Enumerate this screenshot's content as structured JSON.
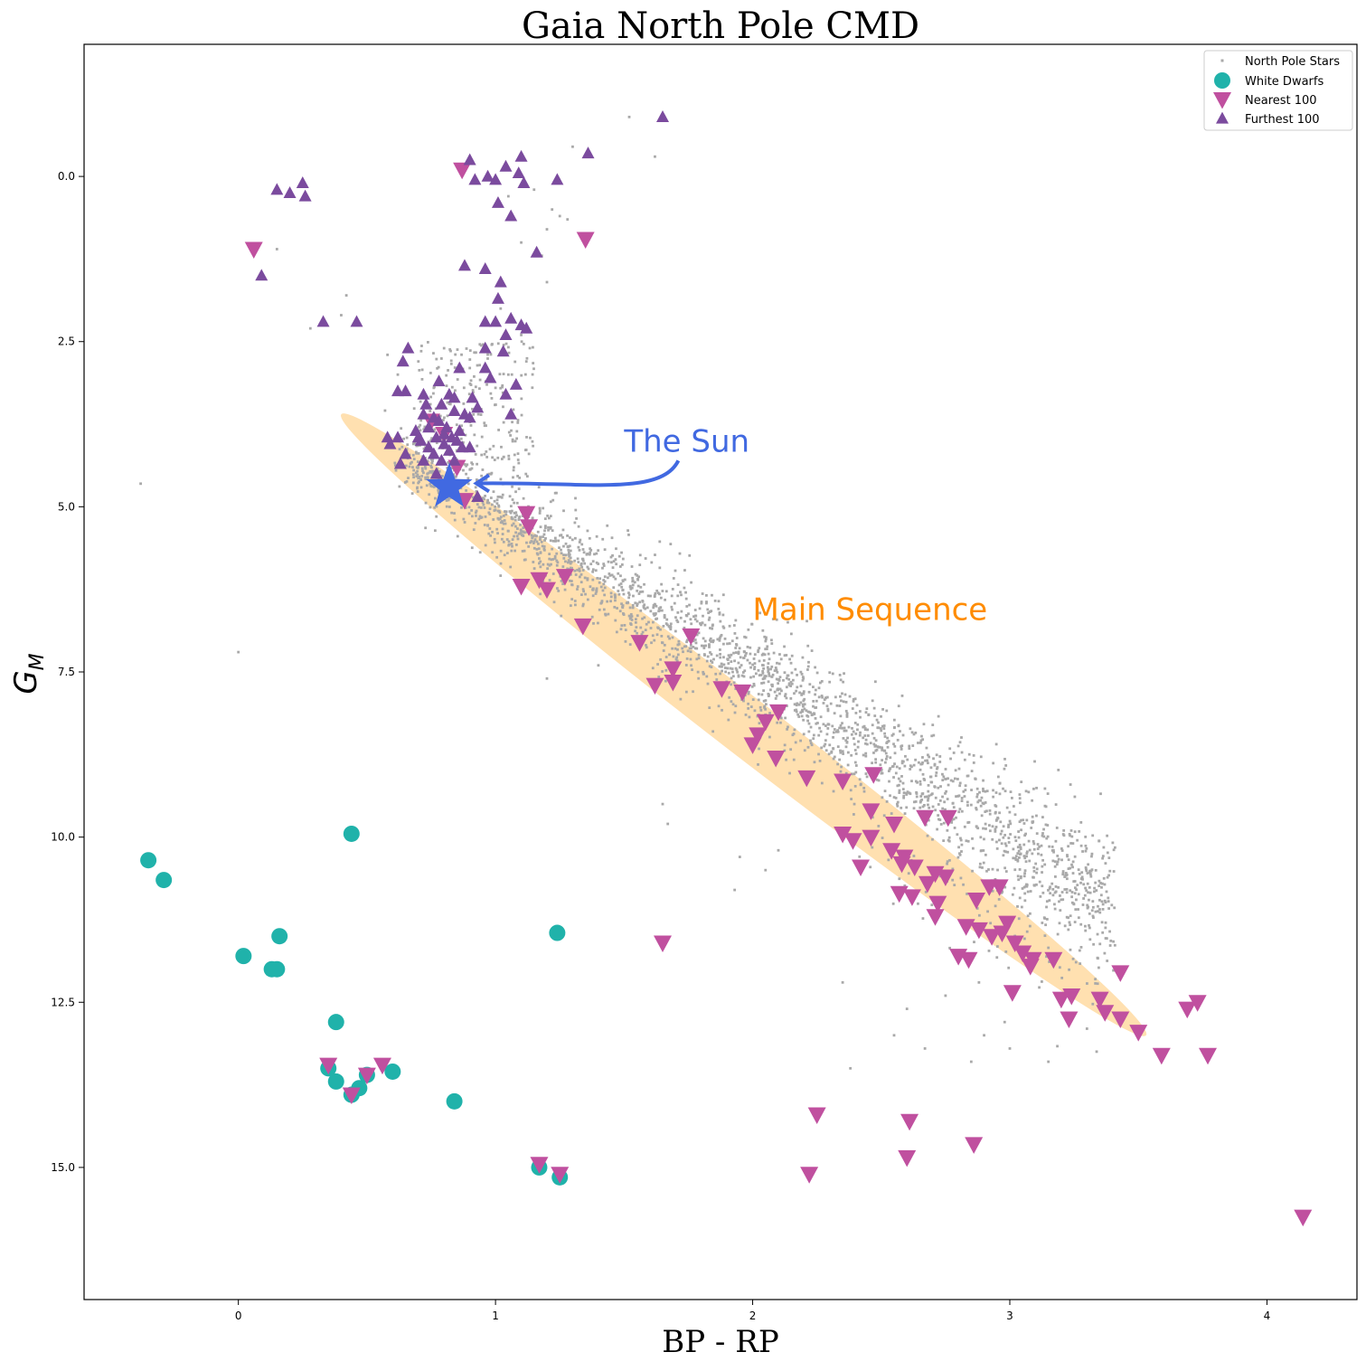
{
  "chart_data": {
    "type": "scatter",
    "title": "Gaia North Pole CMD",
    "xlabel": "BP - RP",
    "ylabel": "G_M",
    "xlim": [
      -0.6,
      4.35
    ],
    "ylim": [
      17.0,
      -2.0
    ],
    "y_inverted": true,
    "grid": false,
    "legend_placement": "top-right",
    "x_ticks": [
      0,
      1,
      2,
      3,
      4
    ],
    "y_ticks": [
      0.0,
      2.5,
      5.0,
      7.5,
      10.0,
      12.5,
      15.0
    ],
    "x_tick_labels": [
      "0",
      "1",
      "2",
      "3",
      "4"
    ],
    "y_tick_labels": [
      "0.0",
      "2.5",
      "5.0",
      "7.5",
      "10.0",
      "12.5",
      "15.0"
    ],
    "series": [
      {
        "name": "North Pole Stars",
        "marker": "small-square",
        "color": "#a9a9a9",
        "points": [
          [
            1.52,
            -0.9
          ],
          [
            1.62,
            -0.3
          ],
          [
            1.3,
            -0.45
          ],
          [
            1.22,
            0.5
          ],
          [
            1.25,
            0.6
          ],
          [
            1.28,
            0.65
          ],
          [
            1.15,
            0.2
          ],
          [
            1.2,
            0.8
          ],
          [
            1.18,
            1.2
          ],
          [
            1.2,
            1.6
          ],
          [
            1.05,
            0.3
          ],
          [
            1.1,
            1.0
          ],
          [
            0.15,
            1.1
          ],
          [
            0.4,
            2.1
          ],
          [
            0.42,
            1.8
          ],
          [
            0.28,
            2.3
          ],
          [
            0.62,
            3.0
          ],
          [
            0.58,
            2.7
          ],
          [
            0.7,
            2.8
          ],
          [
            0.8,
            2.6
          ],
          [
            0.76,
            3.2
          ],
          [
            0.85,
            3.4
          ],
          [
            0.9,
            2.9
          ],
          [
            1.1,
            2.4
          ],
          [
            1.12,
            2.8
          ],
          [
            1.0,
            3.2
          ],
          [
            1.05,
            3.0
          ],
          [
            1.02,
            2.0
          ],
          [
            -0.38,
            4.65
          ],
          [
            0.0,
            7.2
          ],
          [
            1.34,
            6.5
          ],
          [
            1.2,
            7.6
          ],
          [
            1.4,
            7.4
          ],
          [
            1.65,
            9.5
          ],
          [
            1.67,
            9.8
          ],
          [
            1.95,
            10.3
          ],
          [
            2.05,
            10.5
          ],
          [
            2.1,
            10.2
          ],
          [
            1.93,
            10.8
          ],
          [
            2.35,
            12.2
          ],
          [
            2.38,
            13.5
          ],
          [
            2.55,
            13.0
          ],
          [
            2.6,
            12.6
          ],
          [
            2.67,
            13.2
          ],
          [
            2.85,
            13.4
          ],
          [
            2.9,
            13.0
          ],
          [
            3.0,
            13.2
          ],
          [
            3.15,
            13.4
          ],
          [
            3.3,
            12.9
          ],
          [
            3.17,
            10.2
          ],
          [
            2.98,
            12.8
          ],
          [
            2.75,
            12.4
          ],
          [
            2.88,
            12.2
          ],
          [
            2.08,
            6.7
          ]
        ],
        "band": {
          "x_range": [
            0.62,
            3.4
          ],
          "line_a": 4.65,
          "line_b": 2.42,
          "scatter_sigma": 0.28,
          "n_points": 2400,
          "giant_branch_x_range": [
            0.7,
            1.15
          ],
          "giant_branch_y_range": [
            2.5,
            4.6
          ],
          "giant_branch_n": 220
        }
      },
      {
        "name": "White Dwarfs",
        "marker": "circle",
        "color": "#20b2aa",
        "points": [
          [
            -0.35,
            10.35
          ],
          [
            -0.29,
            10.65
          ],
          [
            0.44,
            9.95
          ],
          [
            0.02,
            11.8
          ],
          [
            0.16,
            11.5
          ],
          [
            0.13,
            12.0
          ],
          [
            0.15,
            12.0
          ],
          [
            0.38,
            12.8
          ],
          [
            0.35,
            13.5
          ],
          [
            0.38,
            13.7
          ],
          [
            0.47,
            13.8
          ],
          [
            0.44,
            13.9
          ],
          [
            0.5,
            13.6
          ],
          [
            0.6,
            13.55
          ],
          [
            0.84,
            14.0
          ],
          [
            1.24,
            11.45
          ],
          [
            1.17,
            15.0
          ],
          [
            1.25,
            15.15
          ]
        ]
      },
      {
        "name": "Nearest 100",
        "marker": "triangle-down",
        "color": "#c0509f",
        "points": [
          [
            0.87,
            -0.1
          ],
          [
            1.35,
            0.95
          ],
          [
            0.06,
            1.1
          ],
          [
            0.75,
            3.7
          ],
          [
            0.8,
            3.9
          ],
          [
            0.85,
            4.4
          ],
          [
            0.88,
            4.9
          ],
          [
            1.12,
            5.1
          ],
          [
            1.13,
            5.3
          ],
          [
            1.1,
            6.2
          ],
          [
            1.17,
            6.1
          ],
          [
            1.2,
            6.25
          ],
          [
            1.27,
            6.05
          ],
          [
            1.34,
            6.8
          ],
          [
            1.56,
            7.05
          ],
          [
            1.76,
            6.95
          ],
          [
            1.69,
            7.45
          ],
          [
            1.62,
            7.7
          ],
          [
            1.69,
            7.65
          ],
          [
            1.88,
            7.75
          ],
          [
            1.96,
            7.8
          ],
          [
            2.1,
            8.1
          ],
          [
            2.05,
            8.25
          ],
          [
            2.02,
            8.45
          ],
          [
            2.0,
            8.6
          ],
          [
            2.09,
            8.8
          ],
          [
            2.21,
            9.1
          ],
          [
            2.35,
            9.15
          ],
          [
            2.47,
            9.05
          ],
          [
            2.35,
            9.95
          ],
          [
            2.39,
            10.05
          ],
          [
            2.46,
            10.0
          ],
          [
            2.55,
            9.8
          ],
          [
            2.46,
            9.6
          ],
          [
            2.54,
            10.2
          ],
          [
            2.59,
            10.3
          ],
          [
            2.42,
            10.45
          ],
          [
            2.63,
            10.45
          ],
          [
            2.58,
            10.4
          ],
          [
            2.71,
            10.55
          ],
          [
            2.75,
            10.6
          ],
          [
            2.68,
            10.7
          ],
          [
            2.57,
            10.85
          ],
          [
            2.62,
            10.9
          ],
          [
            2.72,
            11.0
          ],
          [
            2.71,
            11.2
          ],
          [
            2.87,
            10.95
          ],
          [
            2.83,
            11.35
          ],
          [
            2.88,
            11.4
          ],
          [
            2.93,
            11.5
          ],
          [
            2.97,
            11.45
          ],
          [
            2.99,
            11.3
          ],
          [
            3.02,
            11.6
          ],
          [
            3.05,
            11.75
          ],
          [
            3.09,
            11.85
          ],
          [
            3.08,
            11.95
          ],
          [
            2.8,
            11.8
          ],
          [
            2.84,
            11.85
          ],
          [
            3.17,
            11.85
          ],
          [
            3.01,
            12.35
          ],
          [
            3.2,
            12.45
          ],
          [
            3.24,
            12.4
          ],
          [
            3.35,
            12.45
          ],
          [
            3.37,
            12.65
          ],
          [
            3.23,
            12.75
          ],
          [
            3.43,
            12.75
          ],
          [
            3.5,
            12.95
          ],
          [
            3.43,
            12.05
          ],
          [
            2.67,
            9.7
          ],
          [
            2.76,
            9.7
          ],
          [
            2.92,
            10.75
          ],
          [
            2.96,
            10.75
          ],
          [
            1.65,
            11.6
          ],
          [
            3.69,
            12.6
          ],
          [
            3.73,
            12.5
          ],
          [
            3.59,
            13.3
          ],
          [
            3.77,
            13.3
          ],
          [
            4.14,
            15.75
          ],
          [
            2.25,
            14.2
          ],
          [
            2.61,
            14.3
          ],
          [
            2.86,
            14.65
          ],
          [
            2.6,
            14.85
          ],
          [
            2.22,
            15.1
          ],
          [
            0.35,
            13.45
          ],
          [
            0.44,
            13.9
          ],
          [
            0.5,
            13.6
          ],
          [
            0.56,
            13.45
          ],
          [
            1.17,
            14.95
          ],
          [
            1.25,
            15.1
          ]
        ]
      },
      {
        "name": "Furthest 100",
        "marker": "triangle-up",
        "color": "#7b4b9e",
        "points": [
          [
            1.65,
            -0.9
          ],
          [
            1.36,
            -0.35
          ],
          [
            0.9,
            -0.25
          ],
          [
            1.1,
            -0.3
          ],
          [
            1.04,
            -0.15
          ],
          [
            1.09,
            -0.05
          ],
          [
            1.24,
            0.05
          ],
          [
            0.92,
            0.05
          ],
          [
            0.97,
            0.0
          ],
          [
            1.0,
            0.05
          ],
          [
            1.11,
            0.1
          ],
          [
            0.15,
            0.2
          ],
          [
            0.2,
            0.25
          ],
          [
            0.25,
            0.1
          ],
          [
            0.26,
            0.3
          ],
          [
            1.01,
            0.4
          ],
          [
            1.06,
            0.6
          ],
          [
            1.16,
            1.15
          ],
          [
            0.88,
            1.35
          ],
          [
            0.96,
            1.4
          ],
          [
            1.02,
            1.6
          ],
          [
            1.01,
            1.85
          ],
          [
            0.09,
            1.5
          ],
          [
            0.33,
            2.2
          ],
          [
            0.46,
            2.2
          ],
          [
            0.96,
            2.2
          ],
          [
            1.0,
            2.2
          ],
          [
            1.06,
            2.15
          ],
          [
            1.1,
            2.25
          ],
          [
            1.12,
            2.3
          ],
          [
            1.04,
            2.4
          ],
          [
            0.96,
            2.6
          ],
          [
            1.03,
            2.65
          ],
          [
            0.86,
            2.9
          ],
          [
            0.96,
            2.9
          ],
          [
            0.98,
            3.05
          ],
          [
            0.66,
            2.6
          ],
          [
            0.64,
            2.8
          ],
          [
            0.78,
            3.1
          ],
          [
            0.62,
            3.25
          ],
          [
            0.65,
            3.25
          ],
          [
            0.72,
            3.3
          ],
          [
            0.82,
            3.3
          ],
          [
            0.84,
            3.35
          ],
          [
            0.73,
            3.45
          ],
          [
            0.79,
            3.45
          ],
          [
            0.91,
            3.35
          ],
          [
            0.93,
            3.5
          ],
          [
            1.04,
            3.3
          ],
          [
            1.08,
            3.15
          ],
          [
            1.06,
            3.6
          ],
          [
            0.72,
            3.6
          ],
          [
            0.76,
            3.65
          ],
          [
            0.84,
            3.55
          ],
          [
            0.88,
            3.6
          ],
          [
            0.9,
            3.65
          ],
          [
            0.78,
            3.7
          ],
          [
            0.74,
            3.8
          ],
          [
            0.81,
            3.8
          ],
          [
            0.86,
            3.85
          ],
          [
            0.8,
            3.9
          ],
          [
            0.7,
            3.95
          ],
          [
            0.77,
            3.95
          ],
          [
            0.83,
            3.95
          ],
          [
            0.62,
            3.95
          ],
          [
            0.58,
            3.95
          ],
          [
            0.59,
            4.05
          ],
          [
            0.74,
            4.1
          ],
          [
            0.76,
            4.2
          ],
          [
            0.82,
            4.15
          ],
          [
            0.87,
            4.1
          ],
          [
            0.9,
            4.1
          ],
          [
            0.65,
            4.2
          ],
          [
            0.72,
            4.3
          ],
          [
            0.79,
            4.3
          ],
          [
            0.84,
            4.3
          ],
          [
            0.63,
            4.35
          ],
          [
            0.77,
            4.5
          ],
          [
            0.82,
            4.6
          ],
          [
            0.69,
            3.85
          ],
          [
            0.71,
            4.0
          ],
          [
            0.85,
            4.0
          ],
          [
            0.8,
            4.05
          ],
          [
            0.93,
            4.85
          ]
        ]
      }
    ],
    "annotations": [
      {
        "text": "The Sun",
        "color": "#4169e1",
        "target": [
          0.82,
          4.7
        ],
        "text_at": [
          1.5,
          4.0
        ]
      },
      {
        "text": "Main Sequence",
        "color": "#ff8c00",
        "text_at": [
          2.0,
          6.55
        ]
      }
    ],
    "sun_marker": {
      "color": "#4169e1",
      "shape": "star",
      "point": [
        0.82,
        4.7
      ]
    },
    "main_sequence_ellipse": {
      "color": "#ffe0b0",
      "center": [
        1.96,
        8.35
      ],
      "end_a": [
        0.4,
        3.6
      ],
      "end_b": [
        3.53,
        13.0
      ],
      "half_width_data_x": 0.18
    }
  }
}
